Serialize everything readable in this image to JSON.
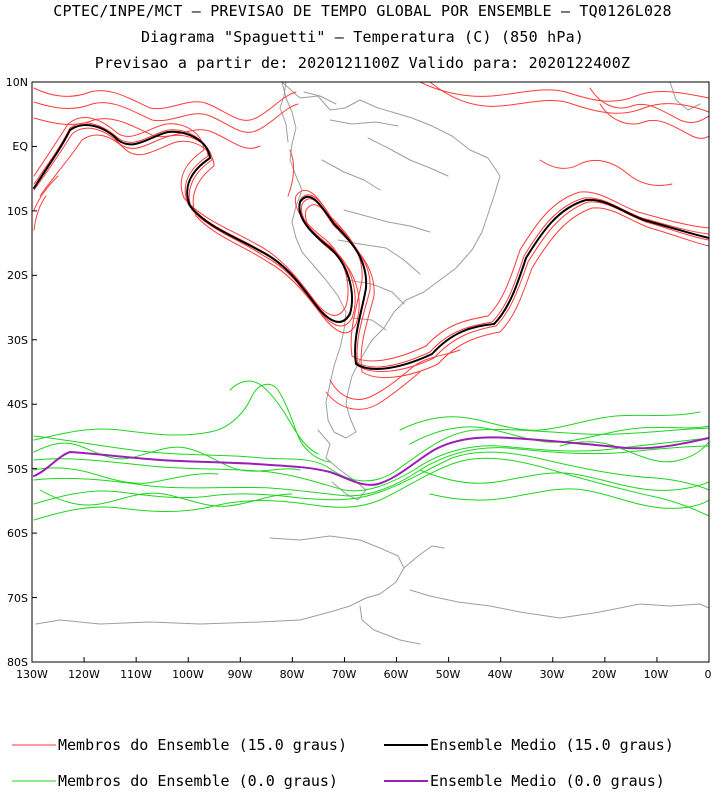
{
  "header": {
    "line1": "CPTEC/INPE/MCT – PREVISAO DE TEMPO GLOBAL POR ENSEMBLE – TQ0126L028",
    "line2": "Diagrama \"Spaguetti\" – Temperatura (C) (850 hPa)",
    "line3": "Previsao a partir de: 2020121100Z  Valido para: 2020122400Z"
  },
  "axes": {
    "lat_labels": [
      "10N",
      "EQ",
      "10S",
      "20S",
      "30S",
      "40S",
      "50S",
      "60S",
      "70S",
      "80S"
    ],
    "lon_labels": [
      "130W",
      "120W",
      "110W",
      "100W",
      "90W",
      "80W",
      "70W",
      "60W",
      "50W",
      "40W",
      "30W",
      "20W",
      "10W",
      "0"
    ]
  },
  "legend": {
    "red_members": "Membros do Ensemble (15.0 graus)",
    "black_mean": "Ensemble Medio (15.0 graus)",
    "green_members": "Membros do Ensemble (0.0 graus)",
    "purple_mean": "Ensemble Medio (0.0 graus)"
  },
  "colors": {
    "members_15": "#ff3b3b",
    "mean_15": "#000000",
    "members_0": "#1fd61f",
    "mean_0": "#9a1fb5",
    "coast": "#9e9e9e"
  },
  "map_extent": {
    "lon": [
      -130,
      0
    ],
    "lat": [
      -80,
      10
    ]
  }
}
